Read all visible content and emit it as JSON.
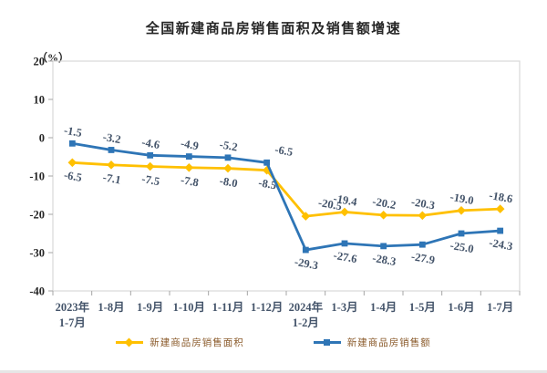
{
  "title": "全国新建商品房销售面积及销售额增速",
  "y_axis_unit": "（%）",
  "chart_data": {
    "type": "line",
    "categories": [
      "2023年\n1-7月",
      "1-8月",
      "1-9月",
      "1-10月",
      "1-11月",
      "1-12月",
      "2024年\n1-2月",
      "1-3月",
      "1-4月",
      "1-5月",
      "1-6月",
      "1-7月"
    ],
    "series": [
      {
        "name": "新建商品房销售面积",
        "color": "#FFC000",
        "marker": "diamond",
        "values": [
          -6.5,
          -7.1,
          -7.5,
          -7.8,
          -8.0,
          -8.5,
          -20.5,
          -19.4,
          -20.2,
          -20.3,
          -19.0,
          -18.6
        ],
        "label_sides": [
          "below",
          "below",
          "below",
          "below",
          "below",
          "below",
          "above",
          "above",
          "above",
          "above",
          "above",
          "above"
        ],
        "label_dx": [
          0,
          0,
          0,
          0,
          0,
          0,
          26,
          0,
          0,
          0,
          0,
          0
        ]
      },
      {
        "name": "新建商品房销售额",
        "color": "#2E75B6",
        "marker": "square",
        "values": [
          -1.5,
          -3.2,
          -4.6,
          -4.9,
          -5.2,
          -6.5,
          -29.3,
          -27.6,
          -28.3,
          -27.9,
          -25.0,
          -24.3
        ],
        "label_sides": [
          "above",
          "above",
          "above",
          "above",
          "above",
          "above",
          "below",
          "below",
          "below",
          "below",
          "below",
          "below"
        ],
        "label_dx": [
          0,
          0,
          0,
          0,
          0,
          18,
          0,
          0,
          0,
          0,
          0,
          0
        ]
      }
    ],
    "ylim": [
      -40,
      20
    ],
    "y_ticks": [
      20,
      10,
      0,
      -10,
      -20,
      -30,
      -40
    ],
    "grid": false,
    "legend_position": "bottom",
    "label_rotation_deg": 10,
    "colors": {
      "plot_border": "#D9D9D9",
      "tick": "#A6A6A6",
      "data_label": "#44546A",
      "x_tick_label": "#44546A",
      "y_tick_label": "#262626",
      "legend_text": "#8A5A2A",
      "title_text": "#262626"
    }
  }
}
